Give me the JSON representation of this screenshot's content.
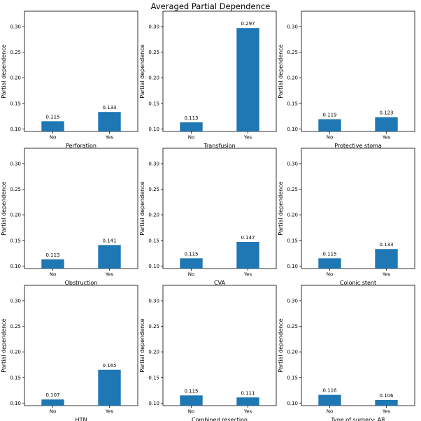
{
  "figure": {
    "title": "Averaged Partial Dependence"
  },
  "chart_data": [
    {
      "type": "bar",
      "categories": [
        "No",
        "Yes"
      ],
      "values": [
        0.115,
        0.133
      ],
      "value_labels": [
        "0.115",
        "0.133"
      ],
      "xlabel": "Perforation",
      "ylabel": "Partial dependence",
      "ylim": [
        0.095,
        0.33
      ],
      "yticks": [
        0.1,
        0.15,
        0.2,
        0.25,
        0.3
      ],
      "ytick_labels": [
        "0.10",
        "0.15",
        "0.20",
        "0.25",
        "0.30"
      ],
      "color": "#1f77b4"
    },
    {
      "type": "bar",
      "categories": [
        "No",
        "Yes"
      ],
      "values": [
        0.113,
        0.297
      ],
      "value_labels": [
        "0.113",
        "0.297"
      ],
      "xlabel": "Transfusion",
      "ylabel": "Partial dependence",
      "ylim": [
        0.095,
        0.33
      ],
      "yticks": [
        0.1,
        0.15,
        0.2,
        0.25,
        0.3
      ],
      "ytick_labels": [
        "0.10",
        "0.15",
        "0.20",
        "0.25",
        "0.30"
      ],
      "color": "#1f77b4"
    },
    {
      "type": "bar",
      "categories": [
        "No",
        "Yes"
      ],
      "values": [
        0.119,
        0.123
      ],
      "value_labels": [
        "0.119",
        "0.123"
      ],
      "xlabel": "Protective stoma",
      "ylabel": "Partial dependence",
      "ylim": [
        0.095,
        0.33
      ],
      "yticks": [
        0.1,
        0.15,
        0.2,
        0.25,
        0.3
      ],
      "ytick_labels": [
        "0.10",
        "0.15",
        "0.20",
        "0.25",
        "0.30"
      ],
      "color": "#1f77b4"
    },
    {
      "type": "bar",
      "categories": [
        "No",
        "Yes"
      ],
      "values": [
        0.113,
        0.141
      ],
      "value_labels": [
        "0.113",
        "0.141"
      ],
      "xlabel": "Obstruction",
      "ylabel": "Partial dependence",
      "ylim": [
        0.095,
        0.33
      ],
      "yticks": [
        0.1,
        0.15,
        0.2,
        0.25,
        0.3
      ],
      "ytick_labels": [
        "0.10",
        "0.15",
        "0.20",
        "0.25",
        "0.30"
      ],
      "color": "#1f77b4"
    },
    {
      "type": "bar",
      "categories": [
        "No",
        "Yes"
      ],
      "values": [
        0.115,
        0.147
      ],
      "value_labels": [
        "0.115",
        "0.147"
      ],
      "xlabel": "CVA",
      "ylabel": "Partial dependence",
      "ylim": [
        0.095,
        0.33
      ],
      "yticks": [
        0.1,
        0.15,
        0.2,
        0.25,
        0.3
      ],
      "ytick_labels": [
        "0.10",
        "0.15",
        "0.20",
        "0.25",
        "0.30"
      ],
      "color": "#1f77b4"
    },
    {
      "type": "bar",
      "categories": [
        "No",
        "Yes"
      ],
      "values": [
        0.115,
        0.133
      ],
      "value_labels": [
        "0.115",
        "0.133"
      ],
      "xlabel": "Colonic stent",
      "ylabel": "Partial dependence",
      "ylim": [
        0.095,
        0.33
      ],
      "yticks": [
        0.1,
        0.15,
        0.2,
        0.25,
        0.3
      ],
      "ytick_labels": [
        "0.10",
        "0.15",
        "0.20",
        "0.25",
        "0.30"
      ],
      "color": "#1f77b4"
    },
    {
      "type": "bar",
      "categories": [
        "No",
        "Yes"
      ],
      "values": [
        0.107,
        0.165
      ],
      "value_labels": [
        "0.107",
        "0.165"
      ],
      "xlabel": "HTN",
      "ylabel": "Partial dependence",
      "ylim": [
        0.095,
        0.33
      ],
      "yticks": [
        0.1,
        0.15,
        0.2,
        0.25,
        0.3
      ],
      "ytick_labels": [
        "0.10",
        "0.15",
        "0.20",
        "0.25",
        "0.30"
      ],
      "color": "#1f77b4"
    },
    {
      "type": "bar",
      "categories": [
        "No",
        "Yes"
      ],
      "values": [
        0.115,
        0.111
      ],
      "value_labels": [
        "0.115",
        "0.111"
      ],
      "xlabel": "Combined resection",
      "ylabel": "Partial dependence",
      "ylim": [
        0.095,
        0.33
      ],
      "yticks": [
        0.1,
        0.15,
        0.2,
        0.25,
        0.3
      ],
      "ytick_labels": [
        "0.10",
        "0.15",
        "0.20",
        "0.25",
        "0.30"
      ],
      "color": "#1f77b4"
    },
    {
      "type": "bar",
      "categories": [
        "No",
        "Yes"
      ],
      "values": [
        0.116,
        0.106
      ],
      "value_labels": [
        "0.116",
        "0.106"
      ],
      "xlabel": "Type of surgery: AR",
      "ylabel": "Partial dependence",
      "ylim": [
        0.095,
        0.33
      ],
      "yticks": [
        0.1,
        0.15,
        0.2,
        0.25,
        0.3
      ],
      "ytick_labels": [
        "0.10",
        "0.15",
        "0.20",
        "0.25",
        "0.30"
      ],
      "color": "#1f77b4"
    }
  ]
}
